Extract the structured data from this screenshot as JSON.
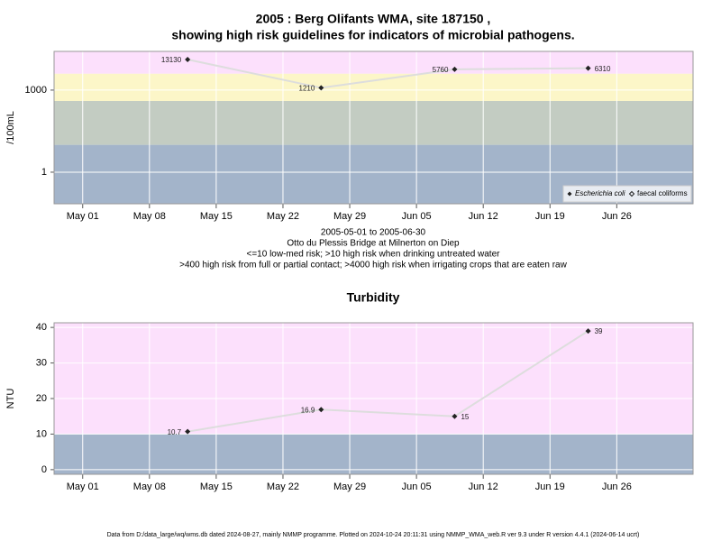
{
  "chart_data": [
    {
      "type": "line",
      "title": "2005 : Berg Olifants WMA, site 187150 ,",
      "subtitle": "showing high risk guidelines for indicators of microbial pathogens.",
      "ylabel": "/100mL",
      "log_y": true,
      "x": [
        "2005-05-12",
        "2005-05-26",
        "2005-06-09",
        "2005-06-23"
      ],
      "series": [
        {
          "name": "Escherichia coli",
          "color": "#222222",
          "values": [
            13130,
            1210,
            5760,
            6310
          ]
        },
        {
          "name": "faecal coliforms",
          "color": "#222222",
          "values": [
            null,
            null,
            null,
            null
          ]
        }
      ],
      "xlim": [
        "2005-04-28",
        "2005-07-04"
      ],
      "xticks": [
        {
          "value": "2005-05-01",
          "label": "May 01"
        },
        {
          "value": "2005-05-08",
          "label": "May 08"
        },
        {
          "value": "2005-05-15",
          "label": "May 15"
        },
        {
          "value": "2005-05-22",
          "label": "May 22"
        },
        {
          "value": "2005-05-29",
          "label": "May 29"
        },
        {
          "value": "2005-06-05",
          "label": "Jun 05"
        },
        {
          "value": "2005-06-12",
          "label": "Jun 12"
        },
        {
          "value": "2005-06-19",
          "label": "Jun 19"
        },
        {
          "value": "2005-06-26",
          "label": "Jun 26"
        }
      ],
      "ylim": [
        0.07,
        26000
      ],
      "yticks": [
        1,
        1000
      ],
      "thresholds": [
        10,
        400,
        4000
      ],
      "band_colors": [
        "#a3b4ca",
        "#c3ccc2",
        "#fcf6c8",
        "#fce0fc"
      ],
      "line_color": "#dddddd",
      "grid": true,
      "legend": "bottom right",
      "notes": [
        "2005-05-01 to 2005-06-30",
        "Otto du Plessis Bridge at Milnerton on Diep",
        "<=10 low-med risk; >10 high risk when drinking untreated water",
        ">400 high risk from full or partial contact; >4000 high risk when irrigating crops that are eaten raw"
      ]
    },
    {
      "type": "line",
      "title": "Turbidity",
      "ylabel": "NTU",
      "log_y": false,
      "x": [
        "2005-05-12",
        "2005-05-26",
        "2005-06-09",
        "2005-06-23"
      ],
      "series": [
        {
          "name": "Turbidity",
          "color": "#222222",
          "values": [
            10.7,
            16.9,
            15,
            39
          ]
        }
      ],
      "xlim": [
        "2005-04-28",
        "2005-07-04"
      ],
      "xticks": [
        {
          "value": "2005-05-01",
          "label": "May 01"
        },
        {
          "value": "2005-05-08",
          "label": "May 08"
        },
        {
          "value": "2005-05-15",
          "label": "May 15"
        },
        {
          "value": "2005-05-22",
          "label": "May 22"
        },
        {
          "value": "2005-05-29",
          "label": "May 29"
        },
        {
          "value": "2005-06-05",
          "label": "Jun 05"
        },
        {
          "value": "2005-06-12",
          "label": "Jun 12"
        },
        {
          "value": "2005-06-19",
          "label": "Jun 19"
        },
        {
          "value": "2005-06-26",
          "label": "Jun 26"
        }
      ],
      "ylim": [
        -1.3,
        41.3
      ],
      "yticks": [
        0,
        10,
        20,
        30,
        40
      ],
      "thresholds": [
        10
      ],
      "band_colors": [
        "#a3b4ca",
        "#fce0fc"
      ],
      "line_color": "#dddddd",
      "grid": true
    }
  ],
  "footer": "Data from D:/data_large/wq/wms.db dated 2024-08-27, mainly NMMP programme. Plotted on 2024-10-24 20:11:31 using NMMP_WMA_web.R ver 9.3 under R version 4.4.1 (2024-06-14 ucrt)"
}
